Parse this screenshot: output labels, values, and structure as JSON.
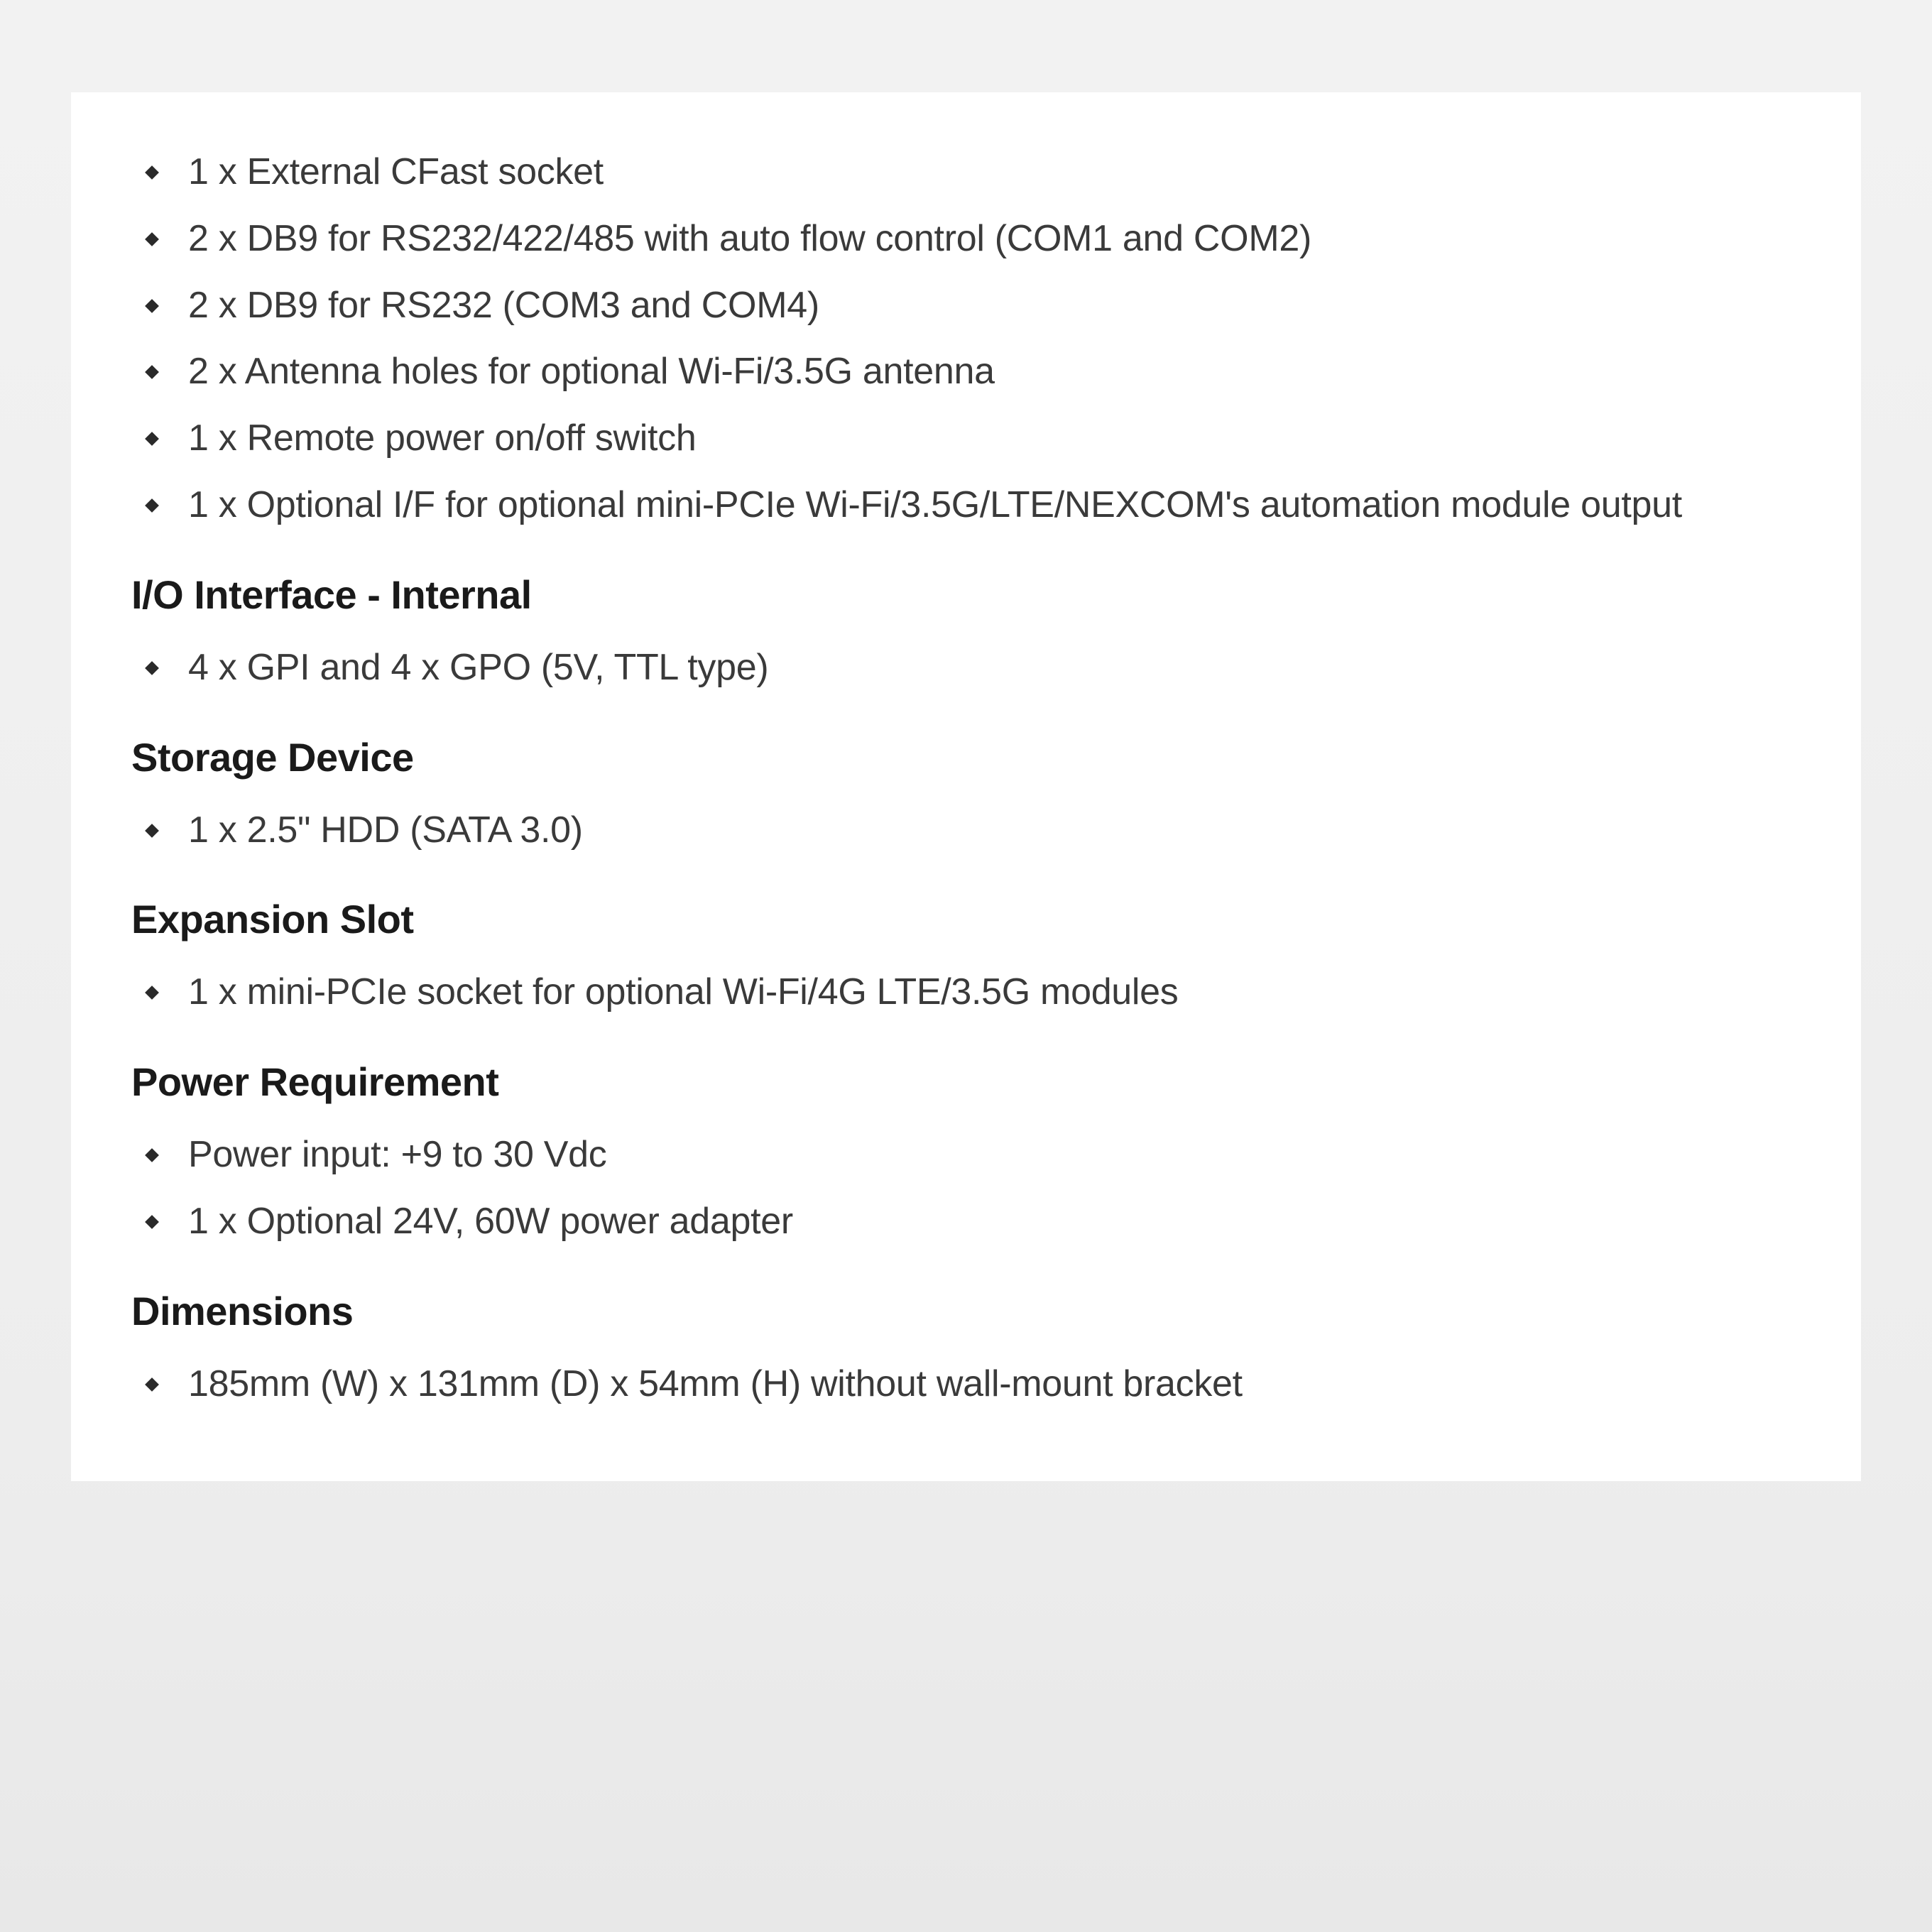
{
  "page_background": "#f0f0f0",
  "card_background": "#ffffff",
  "text_color": "#3a3a3a",
  "heading_color": "#1a1a1a",
  "bullet_color": "#2a2a2a",
  "body_fontsize": 52,
  "heading_fontsize": 56,
  "heading_fontweight": 700,
  "sections": [
    {
      "heading": null,
      "items": [
        "1 x External CFast socket",
        "2 x DB9 for RS232/422/485 with auto flow control (COM1 and COM2)",
        "2 x DB9 for RS232 (COM3 and COM4)",
        "2 x Antenna holes for optional Wi-Fi/3.5G antenna",
        "1 x Remote power on/off switch",
        "1 x Optional I/F for optional mini-PCIe Wi-Fi/3.5G/LTE/NEXCOM's automation module output"
      ]
    },
    {
      "heading": "I/O Interface - Internal",
      "items": [
        "4 x GPI and 4 x GPO (5V, TTL type)"
      ]
    },
    {
      "heading": "Storage Device",
      "items": [
        "1 x 2.5\" HDD (SATA 3.0)"
      ]
    },
    {
      "heading": "Expansion Slot",
      "items": [
        "1 x mini-PCIe socket for optional Wi-Fi/4G LTE/3.5G modules"
      ]
    },
    {
      "heading": "Power Requirement",
      "items": [
        "Power input: +9 to 30 Vdc",
        "1 x Optional 24V, 60W power adapter"
      ]
    },
    {
      "heading": "Dimensions",
      "items": [
        "185mm (W) x 131mm (D) x 54mm (H) without wall-mount bracket"
      ]
    }
  ]
}
